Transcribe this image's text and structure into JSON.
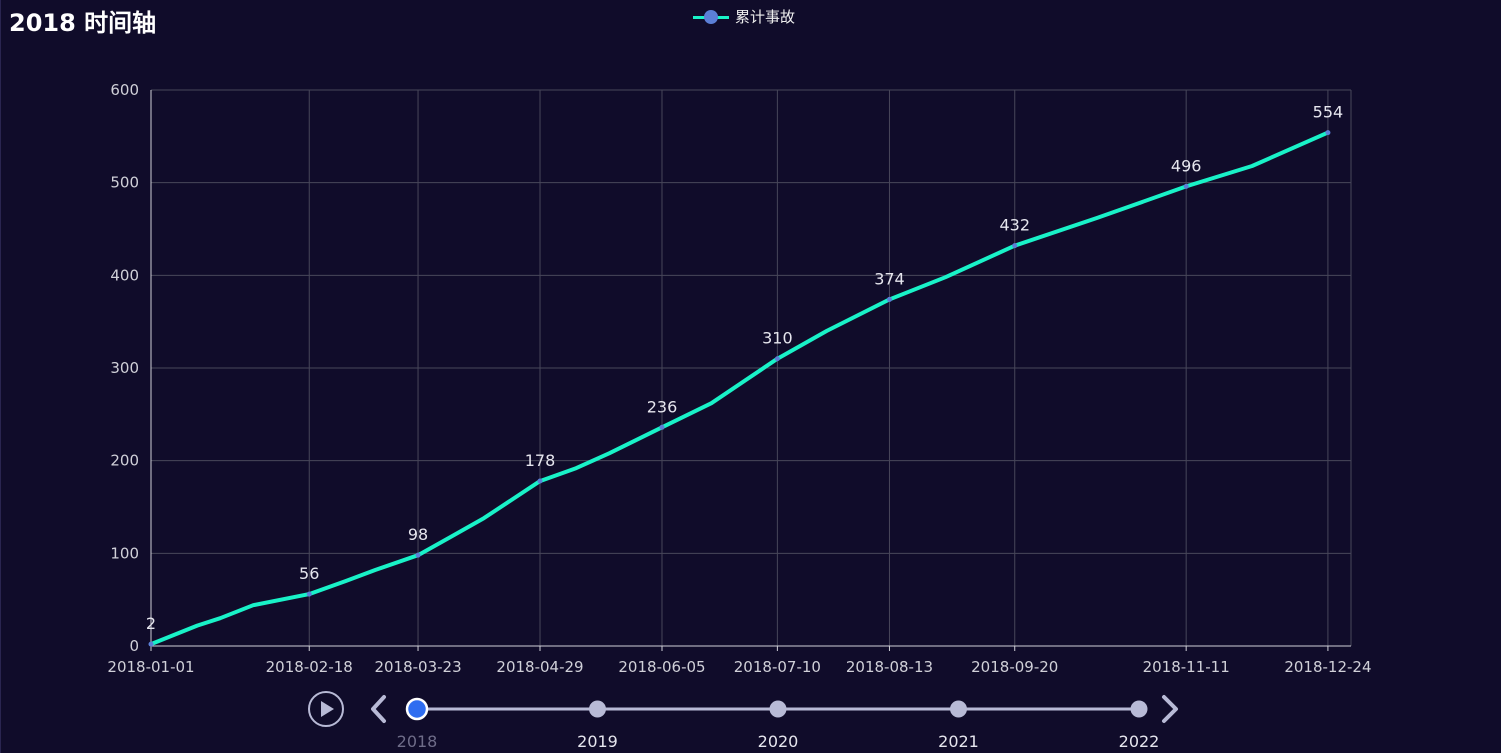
{
  "title": "2018 时间轴",
  "legend": {
    "label": "累计事故",
    "line_color": "#19f2c8",
    "dot_color": "#5b7fd6"
  },
  "colors": {
    "background": "#100c2a",
    "grid": "#48475a",
    "axis_text": "#d0d0d8",
    "series": "#19f2c8",
    "timeline": "#b8bad6",
    "timeline_active": "#2f6df0"
  },
  "chart_data": {
    "type": "line",
    "title": "2018 时间轴",
    "xlabel": "",
    "ylabel": "",
    "ylim": [
      0,
      600
    ],
    "y_ticks": [
      0,
      100,
      200,
      300,
      400,
      500,
      600
    ],
    "grid": true,
    "legend_position": "top-center",
    "x_tick_labels": [
      "2018-01-01",
      "2018-02-18",
      "2018-03-23",
      "2018-04-29",
      "2018-06-05",
      "2018-07-10",
      "2018-08-13",
      "2018-09-20",
      "2018-11-11",
      "2018-12-24"
    ],
    "series": [
      {
        "name": "累计事故",
        "x": [
          "2018-01-01",
          "2018-01-08",
          "2018-01-15",
          "2018-01-22",
          "2018-02-01",
          "2018-02-18",
          "2018-03-01",
          "2018-03-10",
          "2018-03-23",
          "2018-04-02",
          "2018-04-12",
          "2018-04-29",
          "2018-05-10",
          "2018-05-20",
          "2018-06-05",
          "2018-06-20",
          "2018-07-10",
          "2018-07-25",
          "2018-08-13",
          "2018-08-30",
          "2018-09-20",
          "2018-10-15",
          "2018-11-11",
          "2018-12-01",
          "2018-12-24"
        ],
        "values": [
          2,
          12,
          22,
          30,
          44,
          56,
          70,
          82,
          98,
          118,
          138,
          178,
          192,
          208,
          236,
          262,
          310,
          340,
          374,
          398,
          432,
          462,
          496,
          518,
          554
        ]
      }
    ],
    "data_labels": [
      {
        "x": "2018-01-01",
        "value": "2"
      },
      {
        "x": "2018-02-18",
        "value": "56"
      },
      {
        "x": "2018-03-23",
        "value": "98"
      },
      {
        "x": "2018-04-29",
        "value": "178"
      },
      {
        "x": "2018-06-05",
        "value": "236"
      },
      {
        "x": "2018-07-10",
        "value": "310"
      },
      {
        "x": "2018-08-13",
        "value": "374"
      },
      {
        "x": "2018-09-20",
        "value": "432"
      },
      {
        "x": "2018-11-11",
        "value": "496"
      },
      {
        "x": "2018-12-24",
        "value": "554"
      }
    ]
  },
  "timeline": {
    "years": [
      "2018",
      "2019",
      "2020",
      "2021",
      "2022"
    ],
    "active_index": 0,
    "play_icon": "play-circle-icon",
    "prev_icon": "chevron-left-icon",
    "next_icon": "chevron-right-icon"
  }
}
